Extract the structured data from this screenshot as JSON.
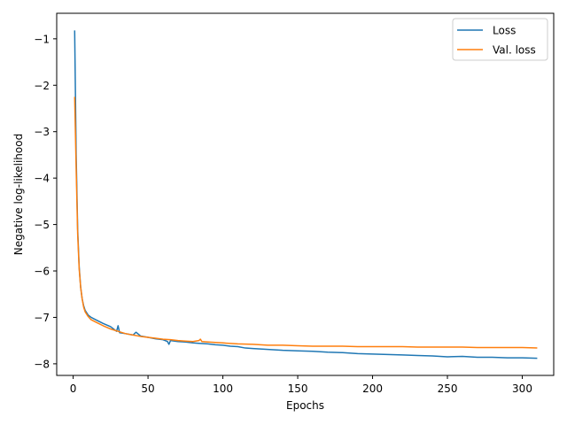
{
  "chart_data": {
    "type": "line",
    "title": "",
    "xlabel": "Epochs",
    "ylabel": "Negative log-likelihood",
    "xlim": [
      -11,
      321
    ],
    "ylim": [
      -8.25,
      -0.45
    ],
    "xticks": [
      0,
      50,
      100,
      150,
      200,
      250,
      300
    ],
    "xtick_labels": [
      "0",
      "50",
      "100",
      "150",
      "200",
      "250",
      "300"
    ],
    "yticks": [
      -1,
      -2,
      -3,
      -4,
      -5,
      -6,
      -7,
      -8
    ],
    "ytick_labels": [
      "−1",
      "−2",
      "−3",
      "−4",
      "−5",
      "−6",
      "−7",
      "−8"
    ],
    "grid": false,
    "legend_position": "top-right",
    "series": [
      {
        "name": "Loss",
        "color": "#1f77b4",
        "x": [
          1,
          2,
          3,
          4,
          5,
          6,
          7,
          8,
          10,
          12,
          15,
          20,
          25,
          29,
          30,
          31,
          35,
          40,
          42,
          45,
          50,
          55,
          60,
          63,
          64,
          65,
          70,
          75,
          80,
          85,
          90,
          95,
          100,
          105,
          110,
          115,
          120,
          130,
          140,
          150,
          160,
          170,
          180,
          190,
          200,
          210,
          220,
          230,
          240,
          250,
          260,
          270,
          280,
          290,
          300,
          310
        ],
        "y": [
          -0.82,
          -3.5,
          -5.1,
          -5.9,
          -6.35,
          -6.6,
          -6.75,
          -6.85,
          -6.95,
          -7.0,
          -7.05,
          -7.13,
          -7.2,
          -7.3,
          -7.18,
          -7.33,
          -7.35,
          -7.38,
          -7.32,
          -7.4,
          -7.43,
          -7.46,
          -7.48,
          -7.52,
          -7.58,
          -7.5,
          -7.52,
          -7.53,
          -7.55,
          -7.56,
          -7.57,
          -7.59,
          -7.6,
          -7.62,
          -7.63,
          -7.66,
          -7.67,
          -7.69,
          -7.71,
          -7.72,
          -7.73,
          -7.75,
          -7.76,
          -7.78,
          -7.79,
          -7.8,
          -7.81,
          -7.82,
          -7.83,
          -7.85,
          -7.84,
          -7.86,
          -7.86,
          -7.87,
          -7.87,
          -7.88
        ]
      },
      {
        "name": "Val. loss",
        "color": "#ff7f0e",
        "x": [
          1,
          2,
          3,
          4,
          5,
          6,
          7,
          8,
          10,
          12,
          15,
          20,
          25,
          30,
          35,
          40,
          45,
          50,
          55,
          60,
          65,
          70,
          75,
          80,
          84,
          85,
          86,
          90,
          95,
          100,
          110,
          120,
          130,
          140,
          150,
          160,
          170,
          180,
          190,
          200,
          210,
          220,
          230,
          240,
          250,
          260,
          270,
          280,
          290,
          300,
          310
        ],
        "y": [
          -2.25,
          -3.8,
          -5.2,
          -5.95,
          -6.35,
          -6.6,
          -6.78,
          -6.88,
          -6.98,
          -7.05,
          -7.1,
          -7.18,
          -7.25,
          -7.3,
          -7.35,
          -7.38,
          -7.41,
          -7.43,
          -7.45,
          -7.47,
          -7.48,
          -7.5,
          -7.51,
          -7.52,
          -7.5,
          -7.47,
          -7.52,
          -7.53,
          -7.54,
          -7.55,
          -7.57,
          -7.58,
          -7.6,
          -7.6,
          -7.61,
          -7.62,
          -7.62,
          -7.62,
          -7.63,
          -7.63,
          -7.63,
          -7.63,
          -7.64,
          -7.64,
          -7.64,
          -7.64,
          -7.65,
          -7.65,
          -7.65,
          -7.65,
          -7.66
        ]
      }
    ]
  }
}
